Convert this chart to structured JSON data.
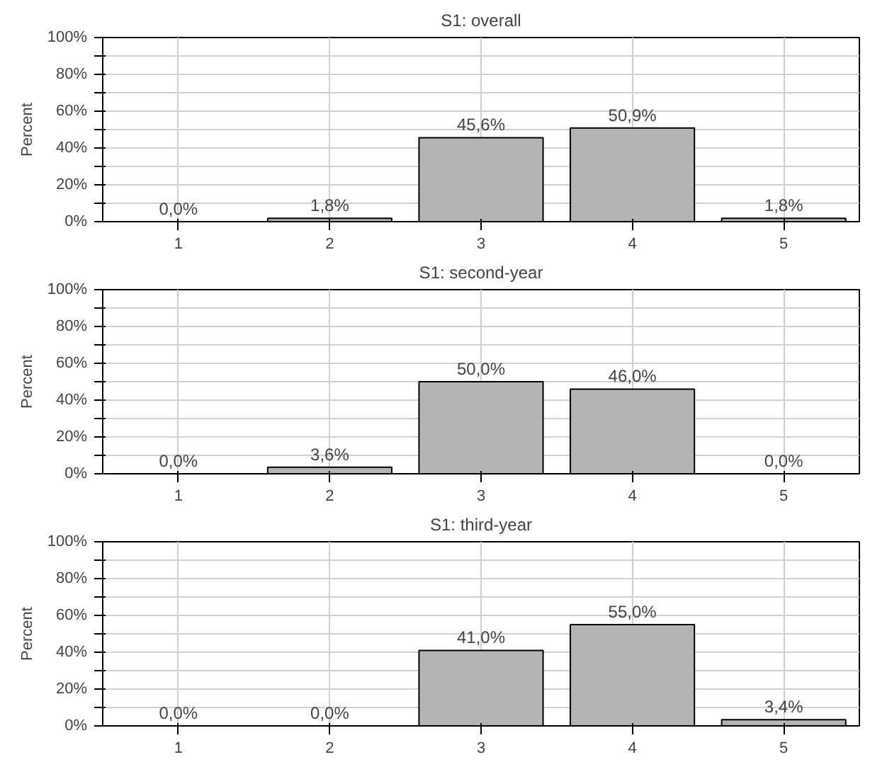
{
  "chart_data": [
    {
      "type": "bar",
      "title": "S1: overall",
      "ylabel": "Percent",
      "categories": [
        "1",
        "2",
        "3",
        "4",
        "5"
      ],
      "values": [
        0.0,
        1.8,
        45.6,
        50.9,
        1.8
      ],
      "value_labels": [
        "0,0%",
        "1,8%",
        "45,6%",
        "50,9%",
        "1,8%"
      ],
      "color": "#b4b4b4",
      "ylim": [
        0,
        100
      ],
      "yticks": [
        {
          "value": 0,
          "label": "0%"
        },
        {
          "value": 10,
          "label": null
        },
        {
          "value": 20,
          "label": "20%"
        },
        {
          "value": 30,
          "label": null
        },
        {
          "value": 40,
          "label": "40%"
        },
        {
          "value": 50,
          "label": null
        },
        {
          "value": 60,
          "label": "60%"
        },
        {
          "value": 70,
          "label": null
        },
        {
          "value": 80,
          "label": "80%"
        },
        {
          "value": 90,
          "label": null
        },
        {
          "value": 100,
          "label": "100%"
        }
      ],
      "grid": true,
      "legend": false
    },
    {
      "type": "bar",
      "title": "S1: second-year",
      "ylabel": "Percent",
      "categories": [
        "1",
        "2",
        "3",
        "4",
        "5"
      ],
      "values": [
        0.0,
        3.6,
        50.0,
        46.0,
        0.0
      ],
      "value_labels": [
        "0,0%",
        "3,6%",
        "50,0%",
        "46,0%",
        "0,0%"
      ],
      "color": "#b4b4b4",
      "ylim": [
        0,
        100
      ],
      "yticks": [
        {
          "value": 0,
          "label": "0%"
        },
        {
          "value": 10,
          "label": null
        },
        {
          "value": 20,
          "label": "20%"
        },
        {
          "value": 30,
          "label": null
        },
        {
          "value": 40,
          "label": "40%"
        },
        {
          "value": 50,
          "label": null
        },
        {
          "value": 60,
          "label": "60%"
        },
        {
          "value": 70,
          "label": null
        },
        {
          "value": 80,
          "label": "80%"
        },
        {
          "value": 90,
          "label": null
        },
        {
          "value": 100,
          "label": "100%"
        }
      ],
      "grid": true,
      "legend": false
    },
    {
      "type": "bar",
      "title": "S1: third-year",
      "ylabel": "Percent",
      "categories": [
        "1",
        "2",
        "3",
        "4",
        "5"
      ],
      "values": [
        0.0,
        0.0,
        41.0,
        55.0,
        3.4
      ],
      "value_labels": [
        "0,0%",
        "0,0%",
        "41,0%",
        "55,0%",
        "3,4%"
      ],
      "color": "#b4b4b4",
      "ylim": [
        0,
        100
      ],
      "yticks": [
        {
          "value": 0,
          "label": "0%"
        },
        {
          "value": 10,
          "label": null
        },
        {
          "value": 20,
          "label": "20%"
        },
        {
          "value": 30,
          "label": null
        },
        {
          "value": 40,
          "label": "40%"
        },
        {
          "value": 50,
          "label": null
        },
        {
          "value": 60,
          "label": "60%"
        },
        {
          "value": 70,
          "label": null
        },
        {
          "value": 80,
          "label": "80%"
        },
        {
          "value": 90,
          "label": null
        },
        {
          "value": 100,
          "label": "100%"
        }
      ],
      "grid": true,
      "legend": false
    }
  ]
}
